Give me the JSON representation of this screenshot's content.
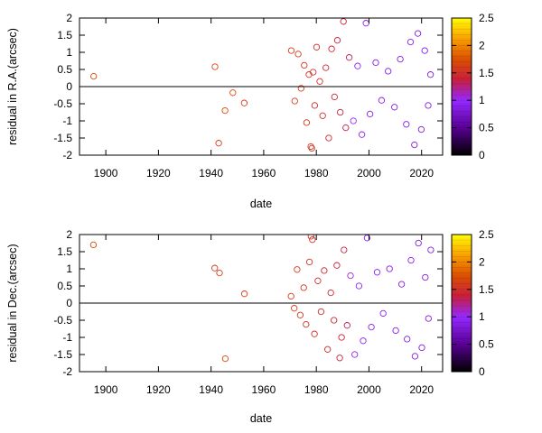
{
  "chart_data": [
    {
      "type": "scatter",
      "xlabel": "date",
      "ylabel": "residual in R.A.(arcsec)",
      "xlim": [
        1890,
        2028
      ],
      "ylim": [
        -2,
        2
      ],
      "xticks": [
        1900,
        1920,
        1940,
        1960,
        1980,
        2000,
        2020
      ],
      "yticks": [
        -2,
        -1.5,
        -1,
        -0.5,
        0,
        0.5,
        1,
        1.5,
        2
      ],
      "grid": false,
      "zero_line": true,
      "marker": "open-circle",
      "colorbar": {
        "range": [
          0,
          2.5
        ],
        "ticks": [
          0,
          0.5,
          1,
          1.5,
          2,
          2.5
        ],
        "colormap": "black-purple-red-orange-yellow",
        "position": "right"
      },
      "points": [
        {
          "x": 1895.4,
          "y": 0.3,
          "c": 1.7
        },
        {
          "x": 1941.5,
          "y": 0.58,
          "c": 1.7
        },
        {
          "x": 1942.9,
          "y": -1.65,
          "c": 1.6
        },
        {
          "x": 1945.3,
          "y": -0.7,
          "c": 1.7
        },
        {
          "x": 1948.3,
          "y": -0.18,
          "c": 1.7
        },
        {
          "x": 1952.6,
          "y": -0.48,
          "c": 1.6
        },
        {
          "x": 1970.5,
          "y": 1.05,
          "c": 1.6
        },
        {
          "x": 1971.8,
          "y": -0.42,
          "c": 1.6
        },
        {
          "x": 1973.1,
          "y": 0.95,
          "c": 1.6
        },
        {
          "x": 1974.2,
          "y": -0.05,
          "c": 1.6
        },
        {
          "x": 1975.4,
          "y": 0.62,
          "c": 1.55
        },
        {
          "x": 1976.3,
          "y": -1.05,
          "c": 1.55
        },
        {
          "x": 1977.2,
          "y": 0.35,
          "c": 1.55
        },
        {
          "x": 1977.9,
          "y": -1.75,
          "c": 1.55
        },
        {
          "x": 1978.3,
          "y": -1.8,
          "c": 1.55
        },
        {
          "x": 1978.8,
          "y": 0.42,
          "c": 1.5
        },
        {
          "x": 1979.4,
          "y": -0.55,
          "c": 1.5
        },
        {
          "x": 1980.1,
          "y": 1.15,
          "c": 1.5
        },
        {
          "x": 1981.3,
          "y": 0.15,
          "c": 1.5
        },
        {
          "x": 1982.4,
          "y": -0.85,
          "c": 1.5
        },
        {
          "x": 1983.6,
          "y": 0.55,
          "c": 1.45
        },
        {
          "x": 1984.7,
          "y": -1.5,
          "c": 1.45
        },
        {
          "x": 1985.8,
          "y": 1.1,
          "c": 1.45
        },
        {
          "x": 1986.9,
          "y": -0.3,
          "c": 1.45
        },
        {
          "x": 1988.0,
          "y": 1.35,
          "c": 1.4
        },
        {
          "x": 1989.1,
          "y": -0.75,
          "c": 1.4
        },
        {
          "x": 1990.3,
          "y": 1.9,
          "c": 1.4
        },
        {
          "x": 1991.2,
          "y": -1.2,
          "c": 1.35
        },
        {
          "x": 1992.5,
          "y": 0.85,
          "c": 1.3
        },
        {
          "x": 1994.1,
          "y": -1.0,
          "c": 1.0
        },
        {
          "x": 1995.7,
          "y": 0.6,
          "c": 0.95
        },
        {
          "x": 1997.3,
          "y": -1.4,
          "c": 0.95
        },
        {
          "x": 1998.9,
          "y": 1.85,
          "c": 0.9
        },
        {
          "x": 2000.4,
          "y": -0.8,
          "c": 0.9
        },
        {
          "x": 2002.6,
          "y": 0.7,
          "c": 0.9
        },
        {
          "x": 2004.8,
          "y": -0.4,
          "c": 0.9
        },
        {
          "x": 2007.3,
          "y": 0.45,
          "c": 0.85
        },
        {
          "x": 2009.7,
          "y": -0.6,
          "c": 0.85
        },
        {
          "x": 2011.9,
          "y": 0.8,
          "c": 0.85
        },
        {
          "x": 2014.2,
          "y": -1.1,
          "c": 0.85
        },
        {
          "x": 2015.8,
          "y": 1.3,
          "c": 0.9
        },
        {
          "x": 2017.3,
          "y": -1.7,
          "c": 0.85
        },
        {
          "x": 2018.6,
          "y": 1.55,
          "c": 0.85
        },
        {
          "x": 2019.9,
          "y": -1.25,
          "c": 0.85
        },
        {
          "x": 2021.2,
          "y": 1.05,
          "c": 0.85
        },
        {
          "x": 2022.5,
          "y": -0.55,
          "c": 0.85
        },
        {
          "x": 2023.4,
          "y": 0.35,
          "c": 0.85
        }
      ]
    },
    {
      "type": "scatter",
      "xlabel": "date",
      "ylabel": "residual in Dec.(arcsec)",
      "xlim": [
        1890,
        2028
      ],
      "ylim": [
        -2,
        2
      ],
      "xticks": [
        1900,
        1920,
        1940,
        1960,
        1980,
        2000,
        2020
      ],
      "yticks": [
        -2,
        -1.5,
        -1,
        -0.5,
        0,
        0.5,
        1,
        1.5,
        2
      ],
      "grid": false,
      "zero_line": true,
      "marker": "open-circle",
      "colorbar": {
        "range": [
          0,
          2.5
        ],
        "ticks": [
          0,
          0.5,
          1,
          1.5,
          2,
          2.5
        ],
        "colormap": "black-purple-red-orange-yellow",
        "position": "right"
      },
      "points": [
        {
          "x": 1895.3,
          "y": 1.7,
          "c": 1.7
        },
        {
          "x": 1941.4,
          "y": 1.02,
          "c": 1.6
        },
        {
          "x": 1943.2,
          "y": 0.88,
          "c": 1.6
        },
        {
          "x": 1945.4,
          "y": -1.62,
          "c": 1.7
        },
        {
          "x": 1952.7,
          "y": 0.27,
          "c": 1.6
        },
        {
          "x": 1970.4,
          "y": 0.2,
          "c": 1.6
        },
        {
          "x": 1971.6,
          "y": -0.15,
          "c": 1.6
        },
        {
          "x": 1972.7,
          "y": 0.98,
          "c": 1.6
        },
        {
          "x": 1973.9,
          "y": -0.35,
          "c": 1.55
        },
        {
          "x": 1975.2,
          "y": 0.45,
          "c": 1.55
        },
        {
          "x": 1976.1,
          "y": -0.62,
          "c": 1.55
        },
        {
          "x": 1977.4,
          "y": 1.2,
          "c": 1.55
        },
        {
          "x": 1978.0,
          "y": 1.95,
          "c": 1.5
        },
        {
          "x": 1978.5,
          "y": 1.85,
          "c": 1.5
        },
        {
          "x": 1979.3,
          "y": -0.9,
          "c": 1.5
        },
        {
          "x": 1980.6,
          "y": 0.65,
          "c": 1.5
        },
        {
          "x": 1981.8,
          "y": -0.25,
          "c": 1.5
        },
        {
          "x": 1983.0,
          "y": 0.95,
          "c": 1.45
        },
        {
          "x": 1984.3,
          "y": -1.35,
          "c": 1.45
        },
        {
          "x": 1985.5,
          "y": 0.3,
          "c": 1.45
        },
        {
          "x": 1986.7,
          "y": -0.5,
          "c": 1.45
        },
        {
          "x": 1987.8,
          "y": 1.1,
          "c": 1.4
        },
        {
          "x": 1988.9,
          "y": -1.6,
          "c": 1.4
        },
        {
          "x": 1989.6,
          "y": -1.0,
          "c": 1.4
        },
        {
          "x": 1990.5,
          "y": 1.55,
          "c": 1.35
        },
        {
          "x": 1991.7,
          "y": -0.65,
          "c": 1.35
        },
        {
          "x": 1993.0,
          "y": 0.8,
          "c": 1.1
        },
        {
          "x": 1994.6,
          "y": -1.5,
          "c": 0.95
        },
        {
          "x": 1996.2,
          "y": 0.5,
          "c": 0.95
        },
        {
          "x": 1997.8,
          "y": -1.1,
          "c": 0.9
        },
        {
          "x": 1999.3,
          "y": 1.9,
          "c": 0.9
        },
        {
          "x": 2000.9,
          "y": -0.7,
          "c": 0.9
        },
        {
          "x": 2003.1,
          "y": 0.9,
          "c": 0.9
        },
        {
          "x": 2005.4,
          "y": -0.3,
          "c": 0.9
        },
        {
          "x": 2007.8,
          "y": 1.0,
          "c": 0.85
        },
        {
          "x": 2010.2,
          "y": -0.8,
          "c": 0.85
        },
        {
          "x": 2012.4,
          "y": 0.55,
          "c": 0.85
        },
        {
          "x": 2014.5,
          "y": -1.05,
          "c": 0.85
        },
        {
          "x": 2016.0,
          "y": 1.25,
          "c": 0.9
        },
        {
          "x": 2017.5,
          "y": -1.55,
          "c": 0.85
        },
        {
          "x": 2018.8,
          "y": 1.75,
          "c": 0.85
        },
        {
          "x": 2020.1,
          "y": -1.3,
          "c": 0.85
        },
        {
          "x": 2021.4,
          "y": 0.75,
          "c": 0.85
        },
        {
          "x": 2022.6,
          "y": -0.45,
          "c": 0.85
        },
        {
          "x": 2023.5,
          "y": 1.55,
          "c": 0.85
        }
      ]
    }
  ]
}
